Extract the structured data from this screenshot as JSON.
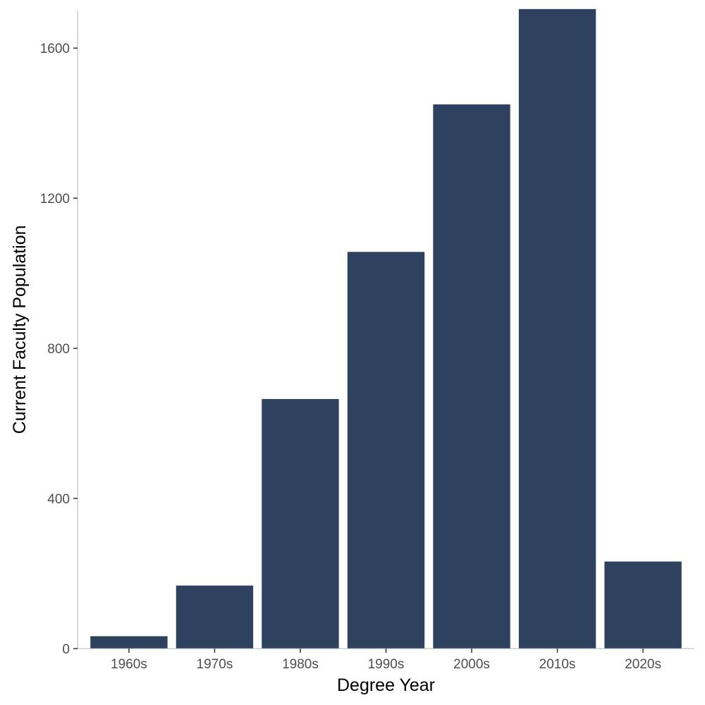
{
  "chart_data": {
    "type": "bar",
    "categories": [
      "1960s",
      "1970s",
      "1980s",
      "1990s",
      "2000s",
      "2010s",
      "2020s"
    ],
    "values": [
      33,
      168,
      665,
      1057,
      1450,
      1704,
      232
    ],
    "xlabel": "Degree Year",
    "ylabel": "Current Faculty Population",
    "ylim": [
      0,
      1700
    ],
    "yticks": [
      0,
      400,
      800,
      1200,
      1600
    ],
    "grid": false,
    "legend": "none",
    "colors": {
      "bar": "#2e4260",
      "axis": "#b3b3b3",
      "tick_text": "#4d4d4d"
    }
  }
}
